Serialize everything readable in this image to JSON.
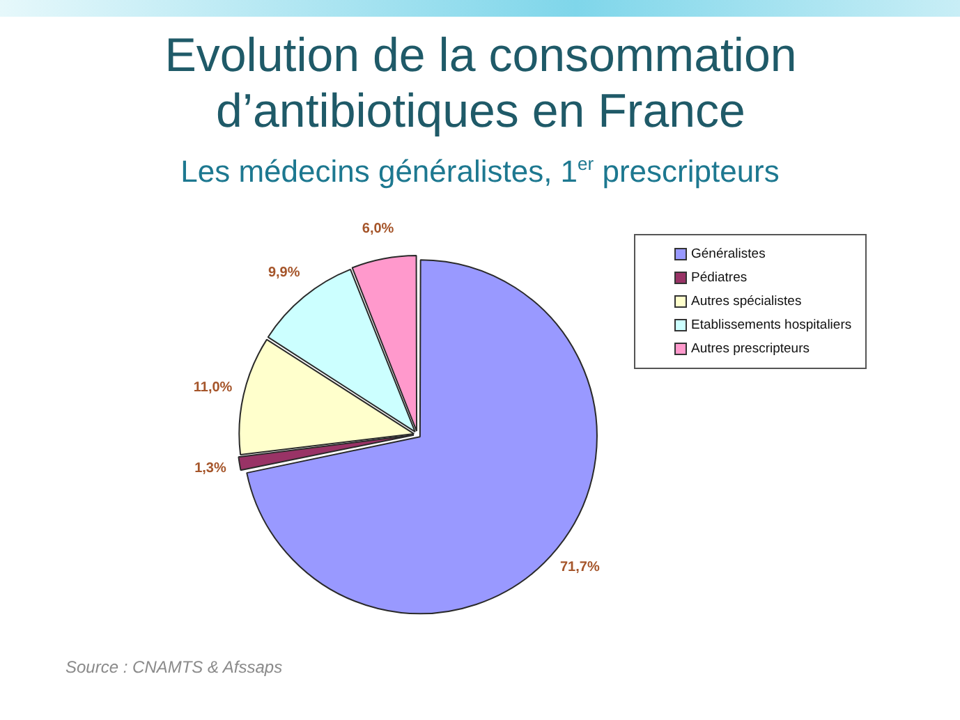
{
  "chart_data": {
    "type": "pie",
    "title": "Evolution de la consommation d’antibiotiques en France",
    "subtitle": "Les médecins généralistes, 1$^{er}$ prescripteurs",
    "categories": [
      "Généralistes",
      "Pédiatres",
      "Autres spécialistes",
      "Etablissements hospitaliers",
      "Autres prescripteurs"
    ],
    "values": [
      71.7,
      1.3,
      11.0,
      9.9,
      6.0
    ],
    "colors": [
      "#9999ff",
      "#993366",
      "#ffffcc",
      "#ccffff",
      "#ff99cc"
    ],
    "value_labels": [
      "71,7%",
      "1,3%",
      "11,0%",
      "9,9%",
      "6,0%"
    ],
    "legend": "top right",
    "annotations": [
      "Source : CNAMTS & Afssaps"
    ]
  }
}
